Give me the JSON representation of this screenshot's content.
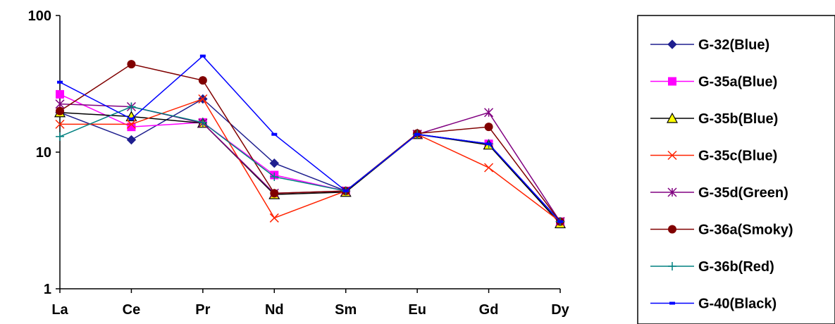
{
  "chart_data": {
    "type": "line",
    "y_scale": "log",
    "ylim": [
      1,
      100
    ],
    "y_ticks": [
      "1",
      "10",
      "100"
    ],
    "categories": [
      "La",
      "Ce",
      "Pr",
      "Nd",
      "Sm",
      "Eu",
      "Gd",
      "Dy"
    ],
    "grid": false,
    "legend_position": "right",
    "series": [
      {
        "name": "G-32(Blue)",
        "color": "#1F1F8F",
        "marker": "diamond",
        "values": [
          19.5,
          12.3,
          24.5,
          8.3,
          5.2,
          13.5,
          11.5,
          3.1
        ]
      },
      {
        "name": "G-35a(Blue)",
        "color": "#FF00FF",
        "marker": "square",
        "values": [
          26.5,
          15.3,
          16.5,
          6.8,
          5.2,
          13.5,
          11.5,
          3.1
        ]
      },
      {
        "name": "G-35b(Blue)",
        "color": "#000000",
        "marker": "triangle",
        "values": [
          19.5,
          18.2,
          16.3,
          4.9,
          5.1,
          13.5,
          11.3,
          3.0
        ]
      },
      {
        "name": "G-35c(Blue)",
        "color": "#FF2200",
        "marker": "x",
        "values": [
          16.0,
          16.0,
          24.5,
          3.3,
          5.2,
          13.5,
          7.7,
          3.1
        ]
      },
      {
        "name": "G-35d(Green)",
        "color": "#800080",
        "marker": "star",
        "values": [
          22.5,
          21.5,
          16.3,
          5.0,
          5.2,
          13.5,
          19.5,
          3.1
        ]
      },
      {
        "name": "G-36a(Smoky)",
        "color": "#800000",
        "marker": "circle",
        "values": [
          20.0,
          44.0,
          33.5,
          5.0,
          5.2,
          13.7,
          15.3,
          3.1
        ]
      },
      {
        "name": "G-36b(Red)",
        "color": "#008080",
        "marker": "plus",
        "values": [
          13.0,
          21.5,
          16.5,
          6.6,
          5.2,
          13.5,
          11.5,
          3.1
        ]
      },
      {
        "name": "G-40(Black)",
        "color": "#0000FF",
        "marker": "dash",
        "values": [
          32.5,
          17.5,
          50.5,
          13.5,
          5.2,
          13.5,
          11.5,
          3.1
        ]
      }
    ]
  }
}
